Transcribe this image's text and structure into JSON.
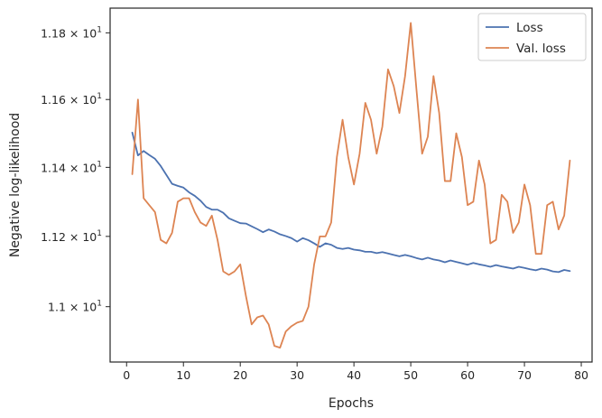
{
  "chart_data": {
    "type": "line",
    "xlabel": "Epochs",
    "ylabel": "Negative log-likelihood",
    "xlim": [
      -2.9,
      81.9
    ],
    "ylim": [
      10.845,
      11.875
    ],
    "yscale": "log",
    "grid": false,
    "legend_position": "top-right",
    "x_ticks": [
      0,
      10,
      20,
      30,
      40,
      50,
      60,
      70,
      80
    ],
    "x_tick_labels": [
      "0",
      "10",
      "20",
      "30",
      "40",
      "50",
      "60",
      "70",
      "80"
    ],
    "y_ticks": [
      11.0,
      11.2,
      11.4,
      11.6,
      11.8
    ],
    "y_tick_labels": [
      {
        "mantissa": "1.1",
        "base": "10",
        "exp": "1"
      },
      {
        "mantissa": "1.12",
        "base": "10",
        "exp": "1"
      },
      {
        "mantissa": "1.14",
        "base": "10",
        "exp": "1"
      },
      {
        "mantissa": "1.16",
        "base": "10",
        "exp": "1"
      },
      {
        "mantissa": "1.18",
        "base": "10",
        "exp": "1"
      }
    ],
    "x": [
      1,
      2,
      3,
      4,
      5,
      6,
      7,
      8,
      9,
      10,
      11,
      12,
      13,
      14,
      15,
      16,
      17,
      18,
      19,
      20,
      21,
      22,
      23,
      24,
      25,
      26,
      27,
      28,
      29,
      30,
      31,
      32,
      33,
      34,
      35,
      36,
      37,
      38,
      39,
      40,
      41,
      42,
      43,
      44,
      45,
      46,
      47,
      48,
      49,
      50,
      51,
      52,
      53,
      54,
      55,
      56,
      57,
      58,
      59,
      60,
      61,
      62,
      63,
      64,
      65,
      66,
      67,
      68,
      69,
      70,
      71,
      72,
      73,
      74,
      75,
      76,
      77,
      78
    ],
    "series": [
      {
        "name": "Loss",
        "color": "#4c72b0",
        "values": [
          11.502,
          11.435,
          11.448,
          11.436,
          11.425,
          11.404,
          11.378,
          11.352,
          11.346,
          11.341,
          11.327,
          11.317,
          11.303,
          11.285,
          11.277,
          11.277,
          11.268,
          11.252,
          11.245,
          11.238,
          11.237,
          11.229,
          11.221,
          11.212,
          11.22,
          11.214,
          11.206,
          11.201,
          11.195,
          11.185,
          11.195,
          11.189,
          11.18,
          11.17,
          11.18,
          11.176,
          11.167,
          11.164,
          11.167,
          11.162,
          11.16,
          11.156,
          11.156,
          11.152,
          11.155,
          11.151,
          11.147,
          11.143,
          11.147,
          11.143,
          11.138,
          11.134,
          11.139,
          11.134,
          11.131,
          11.126,
          11.131,
          11.127,
          11.123,
          11.119,
          11.124,
          11.12,
          11.117,
          11.113,
          11.118,
          11.114,
          11.111,
          11.108,
          11.113,
          11.11,
          11.106,
          11.103,
          11.108,
          11.105,
          11.1,
          11.098,
          11.104,
          11.101
        ]
      },
      {
        "name": "Val. loss",
        "color": "#dd8452",
        "values": [
          11.38,
          11.6,
          11.31,
          11.29,
          11.27,
          11.19,
          11.18,
          11.21,
          11.3,
          11.31,
          11.31,
          11.27,
          11.24,
          11.23,
          11.26,
          11.19,
          11.1,
          11.09,
          11.1,
          11.12,
          11.03,
          10.95,
          10.97,
          10.975,
          10.95,
          10.89,
          10.885,
          10.93,
          10.945,
          10.955,
          10.96,
          11.0,
          11.12,
          11.2,
          11.2,
          11.24,
          11.43,
          11.54,
          11.43,
          11.35,
          11.44,
          11.59,
          11.54,
          11.44,
          11.52,
          11.69,
          11.64,
          11.56,
          11.67,
          11.83,
          11.63,
          11.44,
          11.49,
          11.67,
          11.56,
          11.36,
          11.36,
          11.5,
          11.43,
          11.29,
          11.3,
          11.42,
          11.35,
          11.18,
          11.19,
          11.32,
          11.3,
          11.21,
          11.24,
          11.35,
          11.29,
          11.15,
          11.15,
          11.29,
          11.3,
          11.22,
          11.26,
          11.42
        ]
      }
    ]
  }
}
